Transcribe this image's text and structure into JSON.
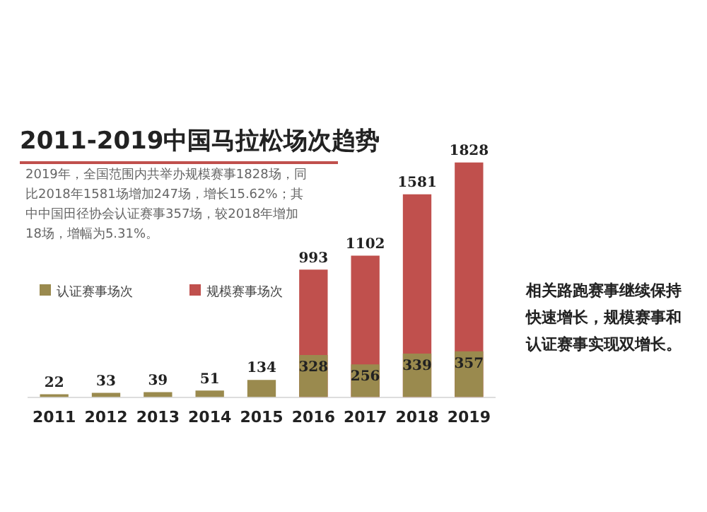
{
  "chart_data": {
    "type": "bar",
    "title": "2011-2019中国马拉松场次趋势",
    "subtitle": "2019年，全国范围内共举办规模赛事1828场，同比2018年1581场增加247场，增长15.62%；其中中国田径协会认证赛事357场，较2018年增加18场，增幅为5.31%。",
    "annotations": [
      "相关路跑赛事继续保持快速增长，规模赛事和认证赛事实现双增长。"
    ],
    "categories": [
      "2011",
      "2012",
      "2013",
      "2014",
      "2015",
      "2016",
      "2017",
      "2018",
      "2019"
    ],
    "series": [
      {
        "name": "认证赛事场次",
        "color": "#9a8a4e",
        "values": [
          22,
          33,
          39,
          51,
          134,
          328,
          256,
          339,
          357
        ]
      },
      {
        "name": "规模赛事场次",
        "color": "#c0504d",
        "values": [
          null,
          null,
          null,
          null,
          null,
          993,
          1102,
          1581,
          1828
        ]
      }
    ],
    "data_labels": true,
    "legend": "left",
    "grid": false
  }
}
